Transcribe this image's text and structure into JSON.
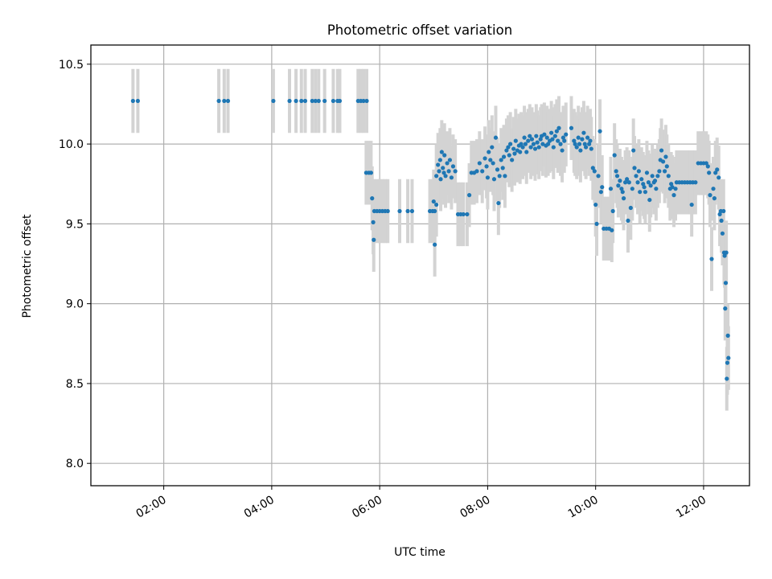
{
  "chart_data": {
    "type": "scatter",
    "title": "Photometric offset variation",
    "xlabel": "UTC time",
    "ylabel": "Photometric offset",
    "xlim_hours": [
      0.65,
      12.85
    ],
    "ylim": [
      7.86,
      10.62
    ],
    "grid": true,
    "x_tick_labels": [
      "02:00",
      "04:00",
      "06:00",
      "08:00",
      "10:00",
      "12:00"
    ],
    "x_tick_hours": [
      2,
      4,
      6,
      8,
      10,
      12
    ],
    "y_tick_labels": [
      "8.0",
      "8.5",
      "9.0",
      "9.5",
      "10.0",
      "10.5"
    ],
    "y_tick_values": [
      8.0,
      8.5,
      9.0,
      9.5,
      10.0,
      10.5
    ],
    "colors": {
      "point": "#1f77b4",
      "errorbar": "#d3d3d3",
      "grid": "#b0b0b0",
      "axes": "#000000"
    },
    "series": [
      {
        "name": "Photometric offset",
        "error": 0.2,
        "points": [
          [
            1.43,
            10.27
          ],
          [
            1.52,
            10.27
          ],
          [
            3.02,
            10.27
          ],
          [
            3.12,
            10.27
          ],
          [
            3.19,
            10.27
          ],
          [
            4.03,
            10.27
          ],
          [
            4.33,
            10.27
          ],
          [
            4.45,
            10.27
          ],
          [
            4.55,
            10.27
          ],
          [
            4.62,
            10.27
          ],
          [
            4.75,
            10.27
          ],
          [
            4.81,
            10.27
          ],
          [
            4.87,
            10.27
          ],
          [
            4.98,
            10.27
          ],
          [
            5.14,
            10.27
          ],
          [
            5.22,
            10.27
          ],
          [
            5.26,
            10.27
          ],
          [
            5.6,
            10.27
          ],
          [
            5.65,
            10.27
          ],
          [
            5.7,
            10.27
          ],
          [
            5.76,
            10.27
          ],
          [
            5.75,
            9.82
          ],
          [
            5.8,
            9.82
          ],
          [
            5.84,
            9.82
          ],
          [
            5.86,
            9.66
          ],
          [
            5.88,
            9.51
          ],
          [
            5.89,
            9.4
          ],
          [
            5.9,
            9.58
          ],
          [
            5.95,
            9.58
          ],
          [
            6.0,
            9.58
          ],
          [
            6.05,
            9.58
          ],
          [
            6.1,
            9.58
          ],
          [
            6.15,
            9.58
          ],
          [
            6.37,
            9.58
          ],
          [
            6.52,
            9.58
          ],
          [
            6.6,
            9.58
          ],
          [
            6.93,
            9.58
          ],
          [
            6.98,
            9.58
          ],
          [
            7.02,
            9.58
          ],
          [
            7.0,
            9.64
          ],
          [
            7.02,
            9.37
          ],
          [
            7.05,
            9.62
          ],
          [
            7.05,
            9.8
          ],
          [
            7.08,
            9.87
          ],
          [
            7.1,
            9.83
          ],
          [
            7.12,
            9.9
          ],
          [
            7.13,
            9.78
          ],
          [
            7.15,
            9.95
          ],
          [
            7.17,
            9.85
          ],
          [
            7.19,
            9.82
          ],
          [
            7.2,
            9.93
          ],
          [
            7.22,
            9.8
          ],
          [
            7.25,
            9.88
          ],
          [
            7.28,
            9.83
          ],
          [
            7.3,
            9.9
          ],
          [
            7.33,
            9.79
          ],
          [
            7.36,
            9.86
          ],
          [
            7.4,
            9.83
          ],
          [
            7.45,
            9.56
          ],
          [
            7.5,
            9.56
          ],
          [
            7.55,
            9.56
          ],
          [
            7.62,
            9.56
          ],
          [
            7.66,
            9.68
          ],
          [
            7.7,
            9.82
          ],
          [
            7.75,
            9.82
          ],
          [
            7.8,
            9.83
          ],
          [
            7.85,
            9.88
          ],
          [
            7.9,
            9.83
          ],
          [
            7.95,
            9.91
          ],
          [
            7.98,
            9.86
          ],
          [
            8.0,
            9.79
          ],
          [
            8.02,
            9.95
          ],
          [
            8.05,
            9.9
          ],
          [
            8.08,
            9.98
          ],
          [
            8.1,
            9.88
          ],
          [
            8.12,
            9.78
          ],
          [
            8.15,
            10.04
          ],
          [
            8.18,
            9.84
          ],
          [
            8.2,
            9.63
          ],
          [
            8.22,
            9.8
          ],
          [
            8.25,
            9.9
          ],
          [
            8.28,
            9.85
          ],
          [
            8.3,
            9.92
          ],
          [
            8.32,
            9.8
          ],
          [
            8.35,
            9.96
          ],
          [
            8.38,
            9.98
          ],
          [
            8.4,
            9.93
          ],
          [
            8.42,
            10.0
          ],
          [
            8.45,
            9.9
          ],
          [
            8.48,
            9.97
          ],
          [
            8.5,
            9.94
          ],
          [
            8.52,
            10.02
          ],
          [
            8.55,
            9.96
          ],
          [
            8.58,
            9.99
          ],
          [
            8.6,
            9.95
          ],
          [
            8.62,
            10.0
          ],
          [
            8.65,
            9.98
          ],
          [
            8.68,
            10.04
          ],
          [
            8.7,
            10.0
          ],
          [
            8.72,
            9.95
          ],
          [
            8.75,
            10.02
          ],
          [
            8.78,
            10.05
          ],
          [
            8.8,
            9.98
          ],
          [
            8.82,
            10.03
          ],
          [
            8.85,
            10.0
          ],
          [
            8.88,
            9.97
          ],
          [
            8.9,
            10.05
          ],
          [
            8.92,
            10.01
          ],
          [
            8.95,
            9.98
          ],
          [
            8.98,
            10.03
          ],
          [
            9.0,
            10.05
          ],
          [
            9.02,
            10.0
          ],
          [
            9.05,
            10.06
          ],
          [
            9.08,
            9.99
          ],
          [
            9.1,
            10.04
          ],
          [
            9.12,
            10.0
          ],
          [
            9.15,
            10.02
          ],
          [
            9.18,
            10.07
          ],
          [
            9.2,
            10.03
          ],
          [
            9.22,
            9.98
          ],
          [
            9.25,
            10.05
          ],
          [
            9.28,
            10.08
          ],
          [
            9.3,
            10.02
          ],
          [
            9.32,
            10.1
          ],
          [
            9.35,
            10.0
          ],
          [
            9.38,
            9.96
          ],
          [
            9.4,
            10.04
          ],
          [
            9.42,
            10.02
          ],
          [
            9.45,
            10.06
          ],
          [
            9.55,
            10.1
          ],
          [
            9.6,
            10.02
          ],
          [
            9.62,
            10.0
          ],
          [
            9.65,
            9.98
          ],
          [
            9.68,
            10.04
          ],
          [
            9.7,
            10.0
          ],
          [
            9.72,
            9.96
          ],
          [
            9.75,
            10.03
          ],
          [
            9.78,
            10.07
          ],
          [
            9.8,
            10.0
          ],
          [
            9.82,
            9.98
          ],
          [
            9.85,
            10.04
          ],
          [
            9.88,
            10.0
          ],
          [
            9.9,
            10.02
          ],
          [
            9.92,
            9.97
          ],
          [
            9.95,
            9.85
          ],
          [
            9.98,
            9.83
          ],
          [
            10.0,
            9.62
          ],
          [
            10.02,
            9.5
          ],
          [
            10.05,
            9.8
          ],
          [
            10.08,
            10.08
          ],
          [
            10.1,
            9.7
          ],
          [
            10.12,
            9.73
          ],
          [
            10.15,
            9.47
          ],
          [
            10.2,
            9.47
          ],
          [
            10.25,
            9.47
          ],
          [
            10.28,
            9.72
          ],
          [
            10.3,
            9.46
          ],
          [
            10.32,
            9.58
          ],
          [
            10.35,
            9.93
          ],
          [
            10.38,
            9.83
          ],
          [
            10.4,
            9.8
          ],
          [
            10.42,
            9.74
          ],
          [
            10.45,
            9.77
          ],
          [
            10.48,
            9.72
          ],
          [
            10.5,
            9.7
          ],
          [
            10.52,
            9.66
          ],
          [
            10.55,
            9.76
          ],
          [
            10.58,
            9.78
          ],
          [
            10.6,
            9.52
          ],
          [
            10.62,
            9.76
          ],
          [
            10.65,
            9.6
          ],
          [
            10.68,
            9.72
          ],
          [
            10.7,
            9.96
          ],
          [
            10.72,
            9.85
          ],
          [
            10.75,
            9.8
          ],
          [
            10.78,
            9.76
          ],
          [
            10.8,
            9.83
          ],
          [
            10.82,
            9.7
          ],
          [
            10.85,
            9.78
          ],
          [
            10.88,
            9.75
          ],
          [
            10.9,
            9.73
          ],
          [
            10.92,
            9.7
          ],
          [
            10.95,
            9.82
          ],
          [
            10.98,
            9.76
          ],
          [
            11.0,
            9.65
          ],
          [
            11.02,
            9.74
          ],
          [
            11.05,
            9.8
          ],
          [
            11.08,
            9.76
          ],
          [
            11.1,
            9.77
          ],
          [
            11.12,
            9.72
          ],
          [
            11.15,
            9.8
          ],
          [
            11.18,
            9.83
          ],
          [
            11.2,
            9.9
          ],
          [
            11.22,
            9.96
          ],
          [
            11.25,
            9.89
          ],
          [
            11.28,
            9.83
          ],
          [
            11.3,
            9.92
          ],
          [
            11.32,
            9.86
          ],
          [
            11.35,
            9.8
          ],
          [
            11.38,
            9.72
          ],
          [
            11.4,
            9.75
          ],
          [
            11.42,
            9.73
          ],
          [
            11.45,
            9.68
          ],
          [
            11.48,
            9.72
          ],
          [
            11.5,
            9.76
          ],
          [
            11.55,
            9.76
          ],
          [
            11.6,
            9.76
          ],
          [
            11.65,
            9.76
          ],
          [
            11.7,
            9.76
          ],
          [
            11.75,
            9.76
          ],
          [
            11.78,
            9.62
          ],
          [
            11.8,
            9.76
          ],
          [
            11.85,
            9.76
          ],
          [
            11.9,
            9.88
          ],
          [
            11.95,
            9.88
          ],
          [
            12.0,
            9.88
          ],
          [
            12.05,
            9.88
          ],
          [
            12.08,
            9.86
          ],
          [
            12.1,
            9.82
          ],
          [
            12.12,
            9.68
          ],
          [
            12.15,
            9.28
          ],
          [
            12.18,
            9.72
          ],
          [
            12.2,
            9.66
          ],
          [
            12.22,
            9.82
          ],
          [
            12.25,
            9.84
          ],
          [
            12.28,
            9.79
          ],
          [
            12.3,
            9.56
          ],
          [
            12.32,
            9.58
          ],
          [
            12.33,
            9.52
          ],
          [
            12.35,
            9.44
          ],
          [
            12.37,
            9.58
          ],
          [
            12.38,
            9.32
          ],
          [
            12.39,
            9.3
          ],
          [
            12.4,
            8.97
          ],
          [
            12.41,
            9.13
          ],
          [
            12.42,
            9.32
          ],
          [
            12.43,
            8.53
          ],
          [
            12.44,
            8.63
          ],
          [
            12.45,
            8.8
          ],
          [
            12.46,
            8.66
          ]
        ]
      }
    ]
  }
}
